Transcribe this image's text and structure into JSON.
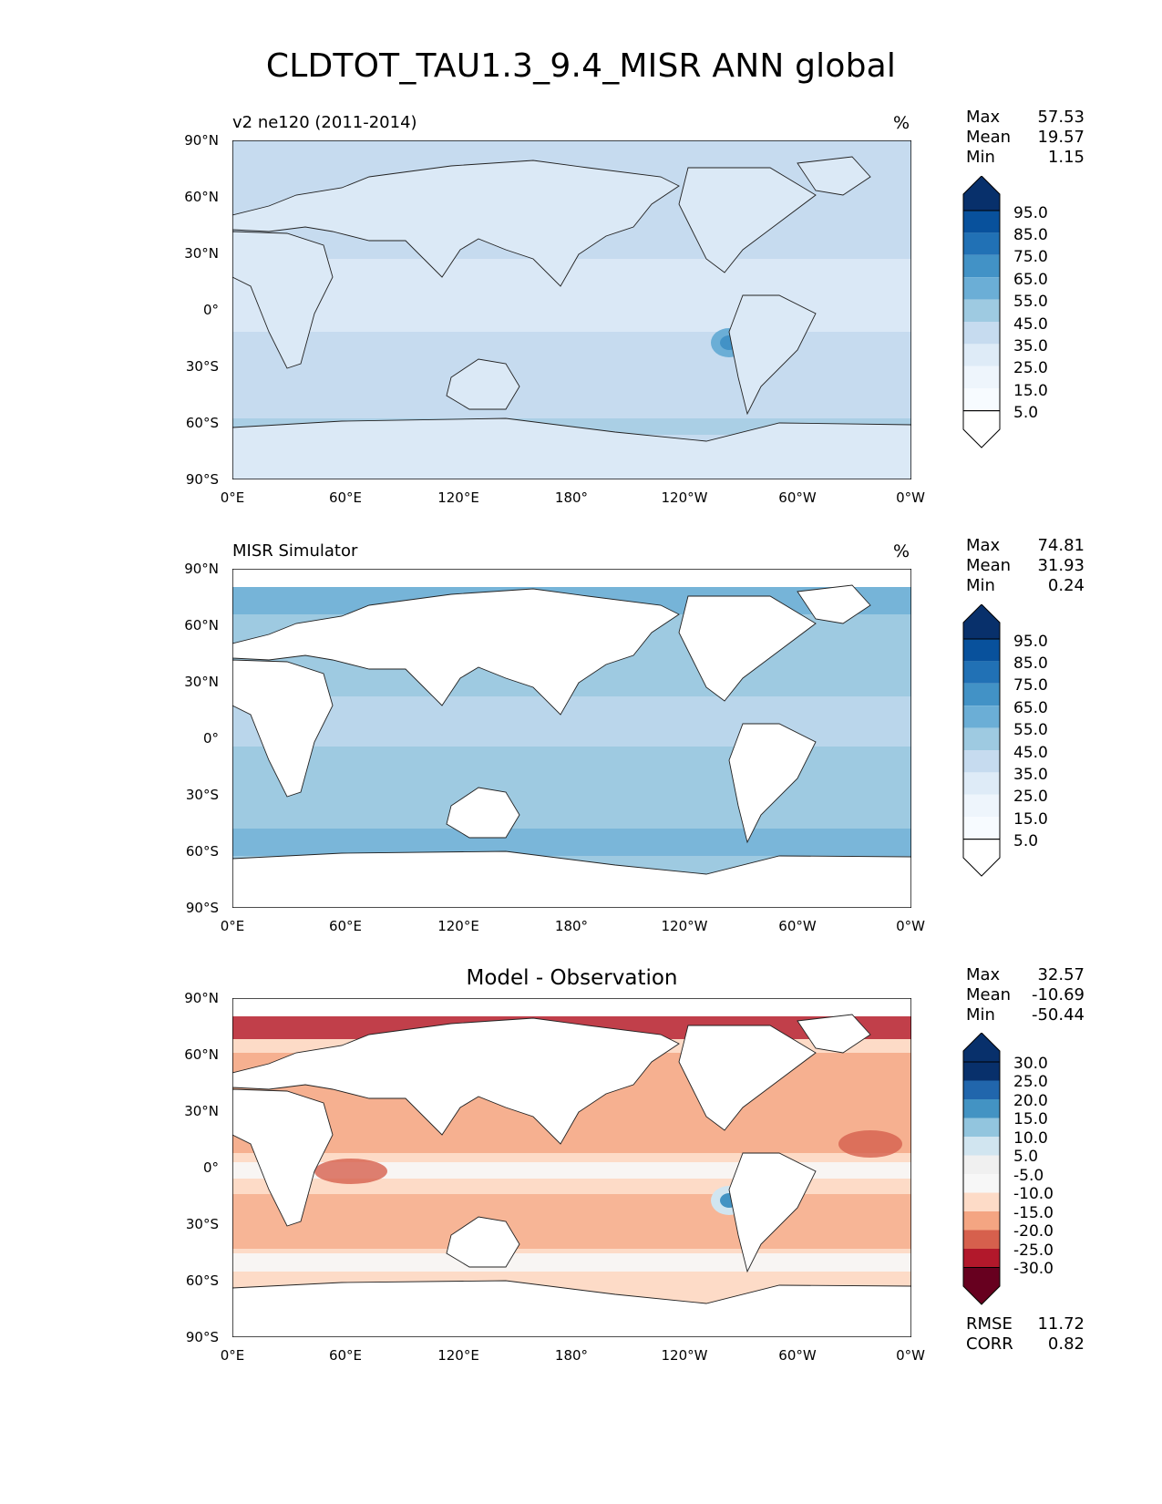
{
  "title": "CLDTOT_TAU1.3_9.4_MISR ANN global",
  "x_ticks": [
    "0°E",
    "60°E",
    "120°E",
    "180°",
    "120°W",
    "60°W",
    "0°W"
  ],
  "y_ticks": [
    "90°N",
    "60°N",
    "30°N",
    "0°",
    "30°S",
    "60°S",
    "90°S"
  ],
  "panels": [
    {
      "title_left": "v2 ne120 (2011-2014)",
      "units": "%",
      "stats": {
        "max_label": "Max",
        "max": "57.53",
        "mean_label": "Mean",
        "mean": "19.57",
        "min_label": "Min",
        "min": "1.15"
      },
      "colorbar": {
        "labels": [
          "95.0",
          "85.0",
          "75.0",
          "65.0",
          "55.0",
          "45.0",
          "35.0",
          "25.0",
          "15.0",
          "5.0"
        ],
        "colors_top_to_bottom": [
          "#08306b",
          "#08519c",
          "#2171b5",
          "#4292c6",
          "#6baed6",
          "#9ecae1",
          "#c6dbef",
          "#deebf7",
          "#f7fbff"
        ]
      },
      "fill_ocean": "#c6dbef",
      "fill_land": "#dbe9f6"
    },
    {
      "title_left": "MISR Simulator",
      "units": "%",
      "stats": {
        "max_label": "Max",
        "max": "74.81",
        "mean_label": "Mean",
        "mean": "31.93",
        "min_label": "Min",
        "min": "0.24"
      },
      "colorbar": {
        "labels": [
          "95.0",
          "85.0",
          "75.0",
          "65.0",
          "55.0",
          "45.0",
          "35.0",
          "25.0",
          "15.0",
          "5.0"
        ],
        "colors_top_to_bottom": [
          "#08306b",
          "#08519c",
          "#2171b5",
          "#4292c6",
          "#6baed6",
          "#9ecae1",
          "#c6dbef",
          "#deebf7",
          "#f7fbff"
        ]
      },
      "fill_ocean": "#9ecae1",
      "fill_land": "#ffffff"
    },
    {
      "title_center": "Model - Observation",
      "stats": {
        "max_label": "Max",
        "max": "32.57",
        "mean_label": "Mean",
        "mean": "-10.69",
        "min_label": "Min",
        "min": "-50.44"
      },
      "colorbar": {
        "labels": [
          "30.0",
          "25.0",
          "20.0",
          "15.0",
          "10.0",
          "5.0",
          "-5.0",
          "-10.0",
          "-15.0",
          "-20.0",
          "-25.0",
          "-30.0"
        ],
        "colors_top_to_bottom": [
          "#08306b",
          "#2166ac",
          "#4393c3",
          "#92c5de",
          "#d1e5f0",
          "#f0f0f0",
          "#f7f7f7",
          "#fddbc7",
          "#f4a582",
          "#d6604d",
          "#b2182b",
          "#67001f"
        ]
      },
      "fill_ocean": "#f4a582",
      "fill_land": "#ffffff",
      "rmse_label": "RMSE",
      "rmse": "11.72",
      "corr_label": "CORR",
      "corr": "0.82"
    }
  ]
}
